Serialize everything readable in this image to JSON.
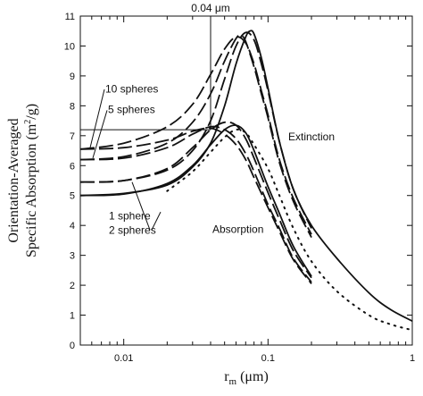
{
  "chart_data": {
    "type": "line",
    "xlabel": "r",
    "xlabel_sub": "m",
    "xlabel_unit": "(μm)",
    "ylabel_line1": "Orientation-Averaged",
    "ylabel_line2": "Specific Absorption (m",
    "ylabel_sup": "2",
    "ylabel_tail": "/g)",
    "x_scale": "log",
    "xlim": [
      0.005,
      1
    ],
    "ylim": [
      0,
      11
    ],
    "x_ticks": [
      {
        "value": 0.01,
        "label": "0.01"
      },
      {
        "value": 0.1,
        "label": "0.1"
      },
      {
        "value": 1,
        "label": "1"
      }
    ],
    "y_ticks": [
      0,
      1,
      2,
      3,
      4,
      5,
      6,
      7,
      8,
      9,
      10,
      11
    ],
    "grid": false,
    "annotations": {
      "marker": "0.04 μm",
      "marker_x": 0.04,
      "ext_label": "Extinction",
      "abs_label": "Absorption",
      "s10": "10 spheres",
      "s5": "5 spheres",
      "s1": "1 sphere",
      "s2": "2 spheres"
    },
    "series": [
      {
        "group": "extinction",
        "style": "solid",
        "x": [
          0.005,
          0.01,
          0.02,
          0.03,
          0.04,
          0.05,
          0.06,
          0.07,
          0.075,
          0.08,
          0.09,
          0.1,
          0.12,
          0.15,
          0.2,
          0.3,
          0.5,
          0.7,
          1.0
        ],
        "y": [
          5.0,
          5.07,
          5.35,
          5.95,
          6.75,
          8.0,
          9.4,
          10.3,
          10.5,
          10.4,
          9.6,
          8.6,
          6.8,
          5.2,
          4.0,
          2.9,
          1.75,
          1.2,
          0.8
        ]
      },
      {
        "group": "extinction",
        "style": "longdash",
        "x": [
          0.005,
          0.01,
          0.02,
          0.03,
          0.04,
          0.05,
          0.06,
          0.07,
          0.08,
          0.09,
          0.1,
          0.12,
          0.15,
          0.2
        ],
        "y": [
          5.45,
          5.5,
          5.85,
          6.5,
          7.5,
          8.9,
          10.0,
          10.45,
          10.2,
          9.4,
          8.5,
          6.8,
          5.2,
          3.9
        ]
      },
      {
        "group": "extinction",
        "style": "longdash",
        "x": [
          0.005,
          0.01,
          0.02,
          0.03,
          0.04,
          0.05,
          0.06,
          0.065,
          0.07,
          0.08,
          0.09,
          0.1,
          0.12,
          0.15,
          0.2
        ],
        "y": [
          6.2,
          6.3,
          6.75,
          7.45,
          8.4,
          9.5,
          10.25,
          10.35,
          10.15,
          9.3,
          8.4,
          7.6,
          6.1,
          4.8,
          3.6
        ]
      },
      {
        "group": "extinction",
        "style": "longdash",
        "x": [
          0.005,
          0.01,
          0.02,
          0.03,
          0.04,
          0.05,
          0.06,
          0.07,
          0.08,
          0.09,
          0.1,
          0.12,
          0.15,
          0.2
        ],
        "y": [
          6.55,
          6.75,
          7.3,
          8.05,
          9.05,
          9.9,
          10.3,
          10.1,
          9.4,
          8.5,
          7.7,
          6.2,
          4.9,
          3.7
        ]
      },
      {
        "group": "absorption",
        "style": "solid",
        "x": [
          0.005,
          0.01,
          0.02,
          0.03,
          0.04,
          0.05,
          0.06,
          0.07,
          0.08,
          0.1,
          0.12,
          0.15,
          0.2
        ],
        "y": [
          5.0,
          5.05,
          5.4,
          6.0,
          6.7,
          7.2,
          7.35,
          7.1,
          6.5,
          5.3,
          4.4,
          3.3,
          2.3
        ]
      },
      {
        "group": "absorption",
        "style": "longdash",
        "x": [
          0.005,
          0.01,
          0.02,
          0.03,
          0.04,
          0.05,
          0.06,
          0.07,
          0.08,
          0.1,
          0.12,
          0.15,
          0.2
        ],
        "y": [
          5.45,
          5.5,
          5.9,
          6.6,
          7.2,
          7.45,
          7.35,
          6.9,
          6.25,
          5.1,
          4.2,
          3.15,
          2.25
        ]
      },
      {
        "group": "absorption",
        "style": "longdash",
        "x": [
          0.005,
          0.01,
          0.02,
          0.03,
          0.04,
          0.05,
          0.06,
          0.07,
          0.08,
          0.1,
          0.12,
          0.15,
          0.2
        ],
        "y": [
          6.2,
          6.25,
          6.6,
          7.05,
          7.3,
          7.2,
          6.9,
          6.4,
          5.8,
          4.7,
          3.9,
          2.9,
          2.1
        ]
      },
      {
        "group": "absorption",
        "style": "longdash",
        "x": [
          0.005,
          0.01,
          0.02,
          0.03,
          0.04,
          0.05,
          0.06,
          0.07,
          0.08,
          0.1,
          0.12,
          0.15,
          0.2
        ],
        "y": [
          6.55,
          6.6,
          6.85,
          7.15,
          7.25,
          7.05,
          6.7,
          6.2,
          5.6,
          4.6,
          3.8,
          2.85,
          2.05
        ]
      },
      {
        "group": "absorption",
        "style": "dotted",
        "x": [
          0.02,
          0.03,
          0.04,
          0.05,
          0.06,
          0.07,
          0.08,
          0.1,
          0.12,
          0.15,
          0.2,
          0.3,
          0.5,
          0.7,
          1.0
        ],
        "y": [
          5.15,
          5.8,
          6.45,
          6.95,
          7.2,
          7.1,
          6.7,
          5.9,
          5.0,
          3.9,
          2.8,
          1.8,
          1.0,
          0.7,
          0.5
        ]
      }
    ]
  }
}
